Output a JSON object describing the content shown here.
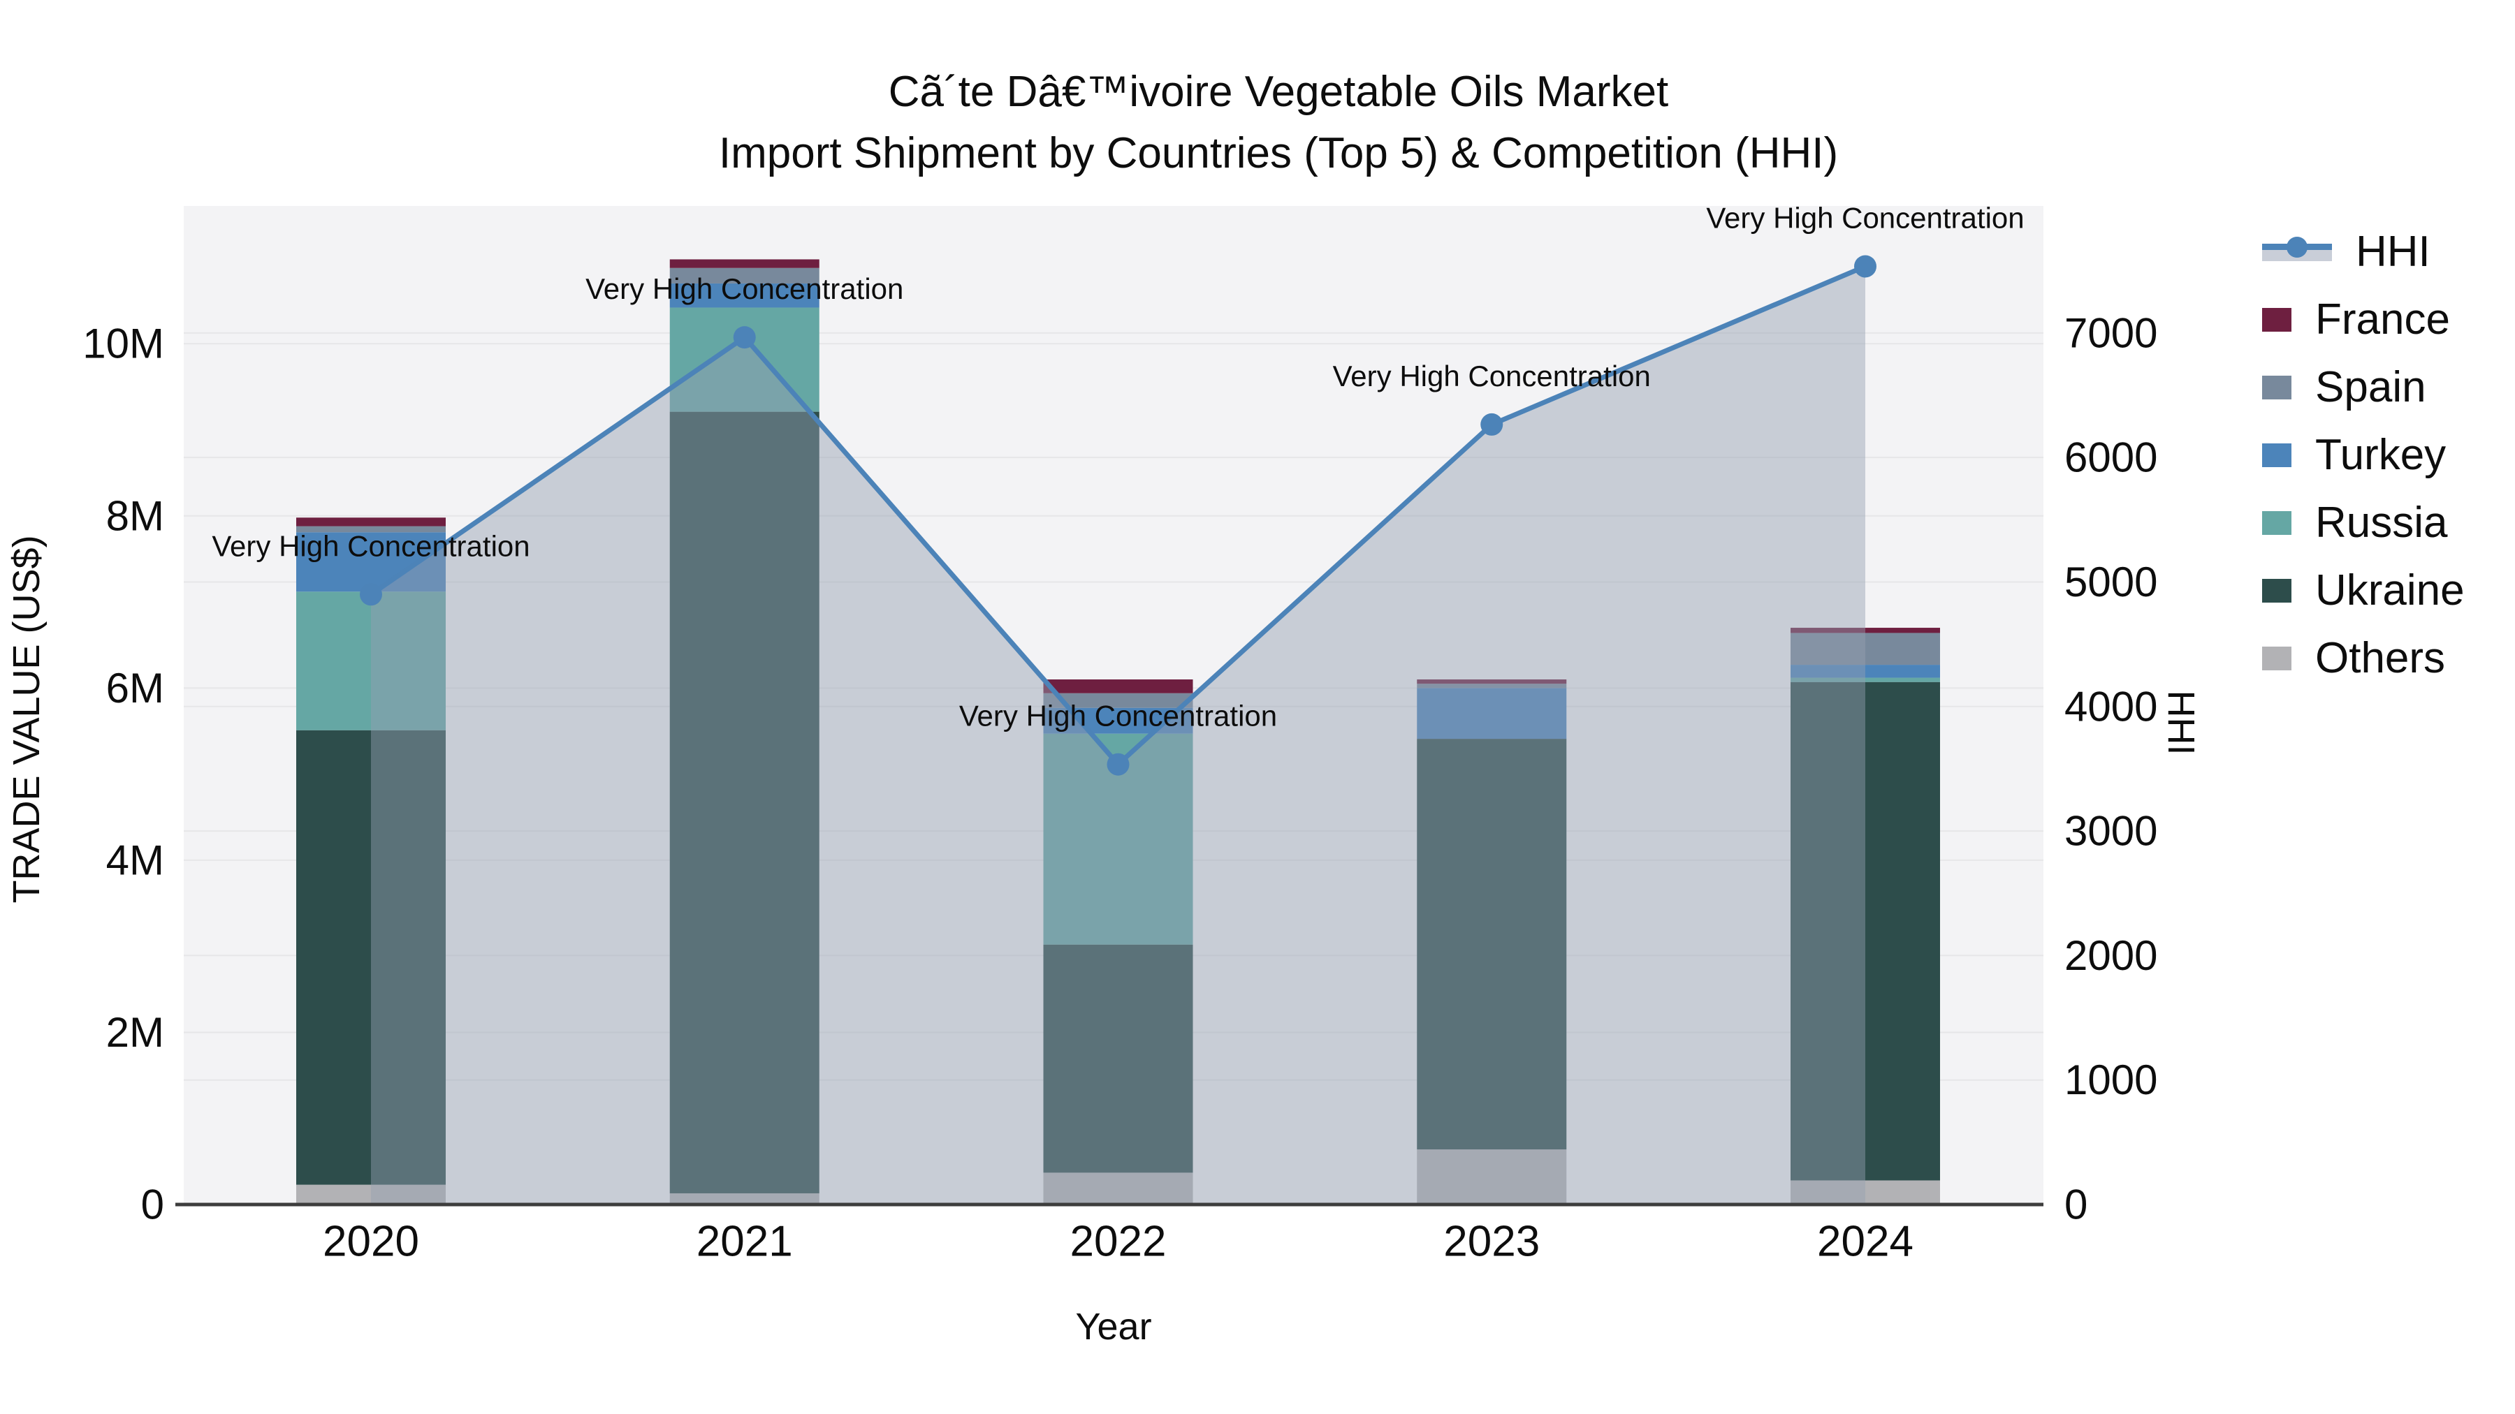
{
  "title": {
    "line1": "Cã´te Dâ€™ivoire Vegetable Oils Market",
    "line2": "Import Shipment by Countries (Top 5) & Competition (HHI)"
  },
  "axes": {
    "x_label": "Year",
    "y_left_label": "TRADE VALUE (US$)",
    "y_right_label": "HHI"
  },
  "colors": {
    "figure_bg": "#ffffff",
    "plot_bg": "#f3f3f5",
    "gridline": "#e6e6e8",
    "axis_line": "#3d3d3d",
    "text": "#0d0d0d",
    "hhi_line": "#4c83b8",
    "hhi_area_fill": "rgba(148,160,178,0.45)",
    "legend_fill_swatch": "#c9ced8"
  },
  "legend": {
    "entries": [
      {
        "label": "HHI",
        "type": "line",
        "color": "#4c83b8"
      },
      {
        "label": "France",
        "type": "box",
        "color": "#6e1f40"
      },
      {
        "label": "Spain",
        "type": "box",
        "color": "#78899c"
      },
      {
        "label": "Turkey",
        "type": "box",
        "color": "#4c84ba"
      },
      {
        "label": "Russia",
        "type": "box",
        "color": "#65a7a4"
      },
      {
        "label": "Ukraine",
        "type": "box",
        "color": "#2d4d4b"
      },
      {
        "label": "Others",
        "type": "box",
        "color": "#b2b2b5"
      }
    ]
  },
  "chart_data": {
    "type": "bar+line",
    "title": "Cã´te Dâ€™ivoire Vegetable Oils Market — Import Shipment by Countries (Top 5) & Competition (HHI)",
    "xlabel": "Year",
    "ylabel_left": "TRADE VALUE (US$)",
    "ylabel_right": "HHI",
    "categories": [
      "2020",
      "2021",
      "2022",
      "2023",
      "2024"
    ],
    "bar_value_unit": "million US$",
    "series": [
      {
        "name": "France",
        "color": "#6e1f40",
        "values": [
          0.1,
          0.1,
          0.16,
          0.05,
          0.06
        ]
      },
      {
        "name": "Spain",
        "color": "#78899c",
        "values": [
          0.07,
          0.18,
          0.17,
          0.05,
          0.37
        ]
      },
      {
        "name": "Turkey",
        "color": "#4c84ba",
        "values": [
          0.69,
          0.28,
          0.3,
          0.59,
          0.15
        ]
      },
      {
        "name": "Russia",
        "color": "#65a7a4",
        "values": [
          1.61,
          1.21,
          2.45,
          0.0,
          0.05
        ]
      },
      {
        "name": "Ukraine",
        "color": "#2d4d4b",
        "values": [
          5.28,
          9.08,
          2.65,
          4.77,
          5.79
        ]
      },
      {
        "name": "Others",
        "color": "#b2b2b5",
        "values": [
          0.23,
          0.13,
          0.37,
          0.64,
          0.28
        ]
      }
    ],
    "stack_order_bottom_to_top": [
      "Others",
      "Ukraine",
      "Russia",
      "Turkey",
      "Spain",
      "France"
    ],
    "bar_totals_millions": [
      7.98,
      10.98,
      6.1,
      6.1,
      6.7
    ],
    "line_series": {
      "name": "HHI",
      "color": "#4c83b8",
      "fill_color": "rgba(148,160,178,0.45)",
      "values": [
        4900,
        6965,
        3535,
        6265,
        7535
      ],
      "point_annotation": "Very High Concentration"
    },
    "ylim_left_millions": [
      0,
      11.6
    ],
    "ylim_right": [
      0,
      8020
    ],
    "y_left_ticks": [
      {
        "label": "0",
        "value": 0
      },
      {
        "label": "2M",
        "value": 2
      },
      {
        "label": "4M",
        "value": 4
      },
      {
        "label": "6M",
        "value": 6
      },
      {
        "label": "8M",
        "value": 8
      },
      {
        "label": "10M",
        "value": 10
      }
    ],
    "y_right_ticks": [
      {
        "label": "0",
        "value": 0
      },
      {
        "label": "1000",
        "value": 1000
      },
      {
        "label": "2000",
        "value": 2000
      },
      {
        "label": "3000",
        "value": 3000
      },
      {
        "label": "4000",
        "value": 4000
      },
      {
        "label": "5000",
        "value": 5000
      },
      {
        "label": "6000",
        "value": 6000
      },
      {
        "label": "7000",
        "value": 7000
      }
    ],
    "grid": true,
    "legend_position": "right-outside"
  }
}
